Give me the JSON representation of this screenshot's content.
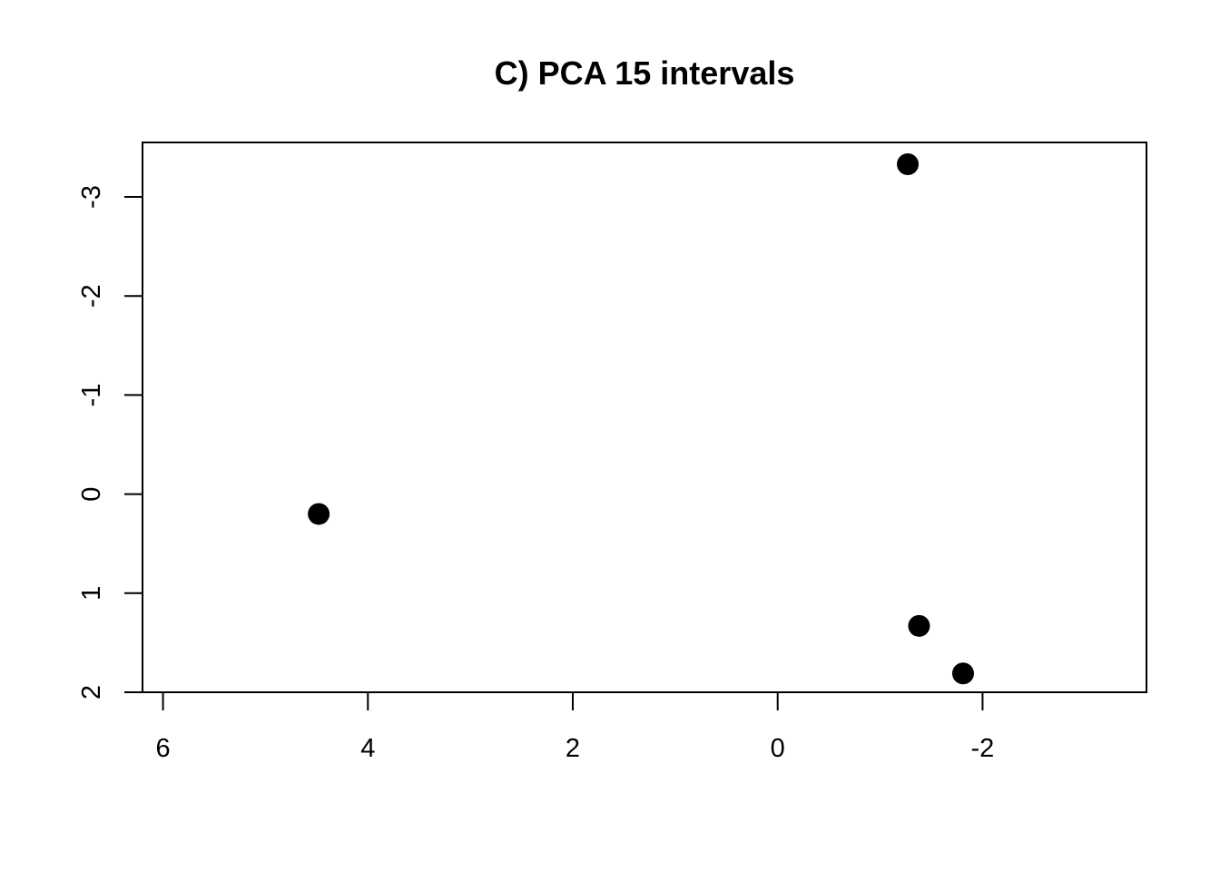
{
  "chart_data": {
    "type": "scatter",
    "title": "C) PCA 15 intervals",
    "xlabel": "",
    "ylabel": "",
    "xlim": [
      6.2,
      -3.6
    ],
    "ylim": [
      2.0,
      -3.55
    ],
    "x_reversed": true,
    "y_reversed": true,
    "grid": false,
    "legend": "none",
    "xticks": [
      6,
      4,
      2,
      0,
      -2
    ],
    "xtick_labels": [
      "6",
      "4",
      "2",
      "0",
      "-2"
    ],
    "yticks": [
      -3,
      -2,
      -1,
      0,
      1,
      2
    ],
    "ytick_labels": [
      "-3",
      "-2",
      "-1",
      "0",
      "1",
      "2"
    ],
    "points": [
      {
        "x": 4.48,
        "y": 0.2
      },
      {
        "x": -1.27,
        "y": -3.33
      },
      {
        "x": -1.38,
        "y": 1.33
      },
      {
        "x": -1.81,
        "y": 1.81
      }
    ],
    "marker": "filled-circle",
    "point_color": "#000000"
  }
}
